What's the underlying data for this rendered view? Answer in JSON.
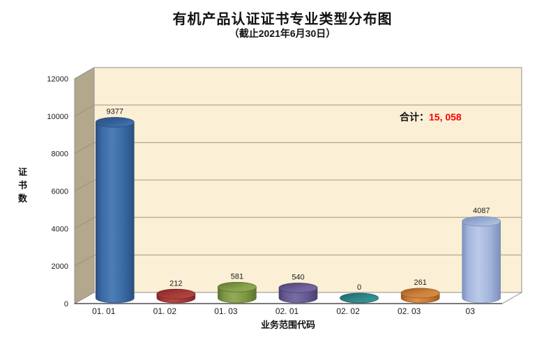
{
  "header": {
    "title": "有机产品认证证书专业类型分布图",
    "subtitle": "（截止2021年6月30日）"
  },
  "total": {
    "label": "合计：",
    "value_text": "15, 058",
    "value_color": "#ff0000"
  },
  "chart_data": {
    "type": "bar",
    "style": "3d-cylinder",
    "title": "有机产品认证证书专业类型分布图（截止2021年6月30日）",
    "categories": [
      "01. 01",
      "01. 02",
      "01. 03",
      "02. 01",
      "02. 02",
      "02. 03",
      "03"
    ],
    "values": [
      9377,
      212,
      581,
      540,
      0,
      261,
      4087
    ],
    "total": 15058,
    "xlabel": "业务范围代码",
    "ylabel": "证书数",
    "ylim": [
      0,
      12000
    ],
    "yticks": [
      0,
      2000,
      4000,
      6000,
      8000,
      10000,
      12000
    ],
    "grid": true,
    "legend": false,
    "bar_colors": [
      {
        "dark": "#2A4F80",
        "base": "#3A6BA5",
        "light": "#4E7DB5",
        "top": "#35639B"
      },
      {
        "dark": "#7E2726",
        "base": "#A23634",
        "light": "#B54A46",
        "top": "#A93C3A"
      },
      {
        "dark": "#5C7330",
        "base": "#7D9742",
        "light": "#92AB58",
        "top": "#87A14C"
      },
      {
        "dark": "#4A4070",
        "base": "#675992",
        "light": "#796BA4",
        "top": "#6F6199"
      },
      {
        "dark": "#1E6466",
        "base": "#2E8A8C",
        "light": "#3A9B9D",
        "top": "#31888A"
      },
      {
        "dark": "#9C5A1E",
        "base": "#C87834",
        "light": "#DA9049",
        "top": "#CE8440"
      },
      {
        "dark": "#7C90BC",
        "base": "#A3B5DC",
        "light": "#BCCAE9",
        "top": "#9DB0D6"
      }
    ],
    "walls": {
      "back": "#FBEFD5",
      "side": "#B3A78C",
      "floor": "#FEFEFE",
      "grid": "#B9AE96",
      "side_grid": "#9C9176",
      "edge": "#8F8F8F",
      "front_axis": "#4D4D4D"
    },
    "text_color": "#1a1a1a"
  }
}
